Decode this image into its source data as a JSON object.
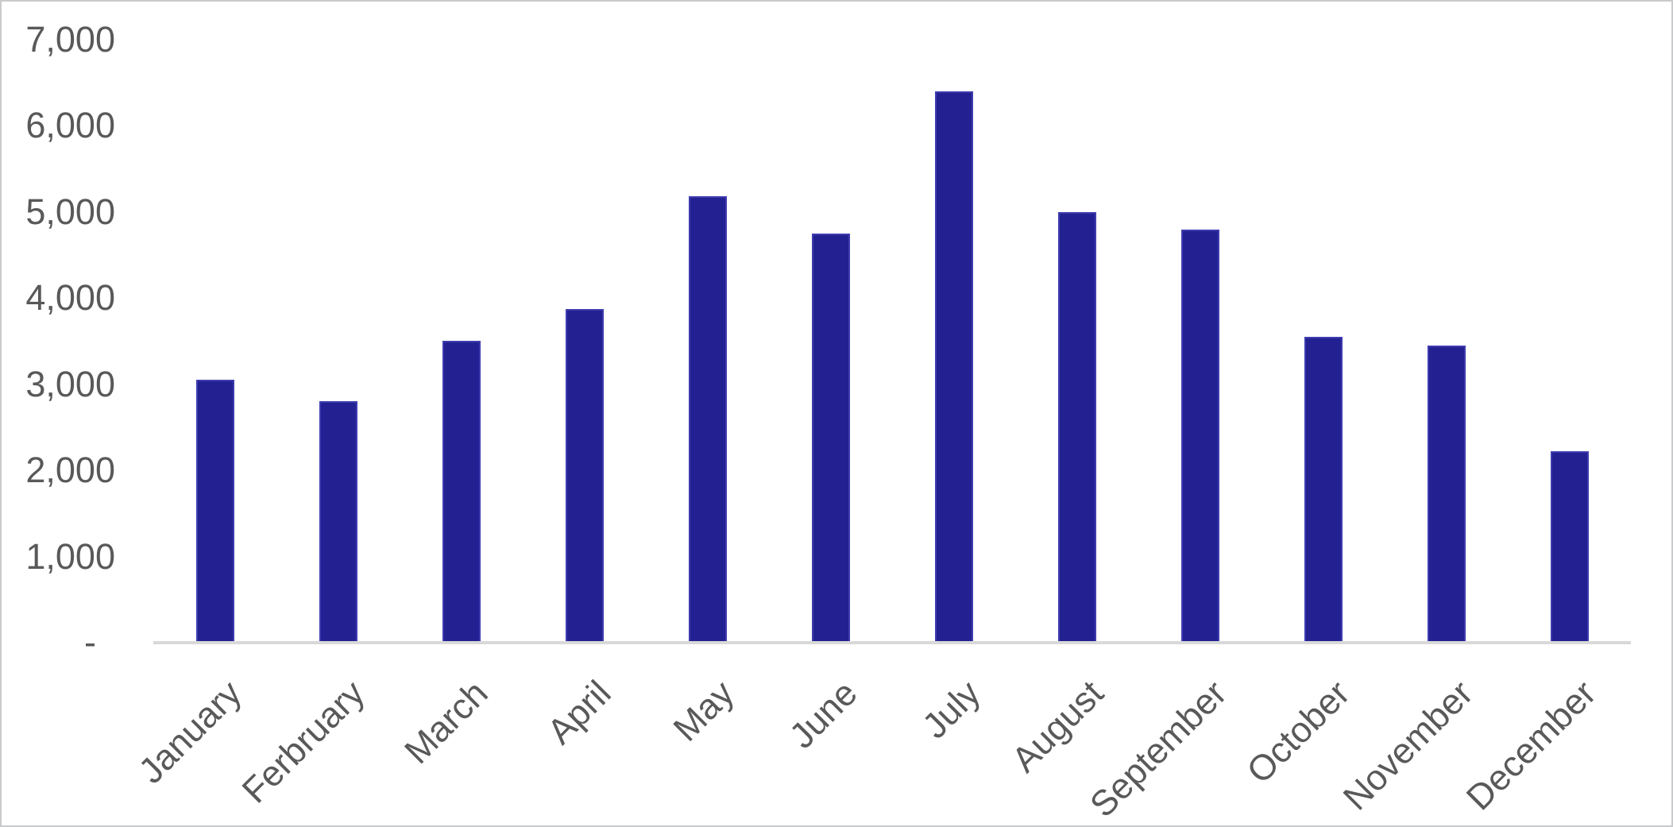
{
  "chart_data": {
    "type": "bar",
    "title": "",
    "xlabel": "",
    "ylabel": "",
    "categories": [
      "January",
      "Ferbruary",
      "March",
      "April",
      "May",
      "June",
      "July",
      "August",
      "September",
      "October",
      "November",
      "December"
    ],
    "values": [
      3050,
      2800,
      3500,
      3870,
      5180,
      4750,
      6400,
      5000,
      4800,
      3550,
      3450,
      2220
    ],
    "ylim": [
      0,
      7000
    ],
    "yticks": [
      0,
      1000,
      2000,
      3000,
      4000,
      5000,
      6000,
      7000
    ],
    "ytick_labels": [
      "-",
      "1,000",
      "2,000",
      "3,000",
      "4,000",
      "5,000",
      "6,000",
      "7,000"
    ],
    "grid": false,
    "legend": false,
    "bar_color": "#232191",
    "bar_border_color": "#3e3caf",
    "axis_line_color": "#d9d9d9",
    "tick_label_color": "#595959",
    "background_color": "#ffffff"
  }
}
